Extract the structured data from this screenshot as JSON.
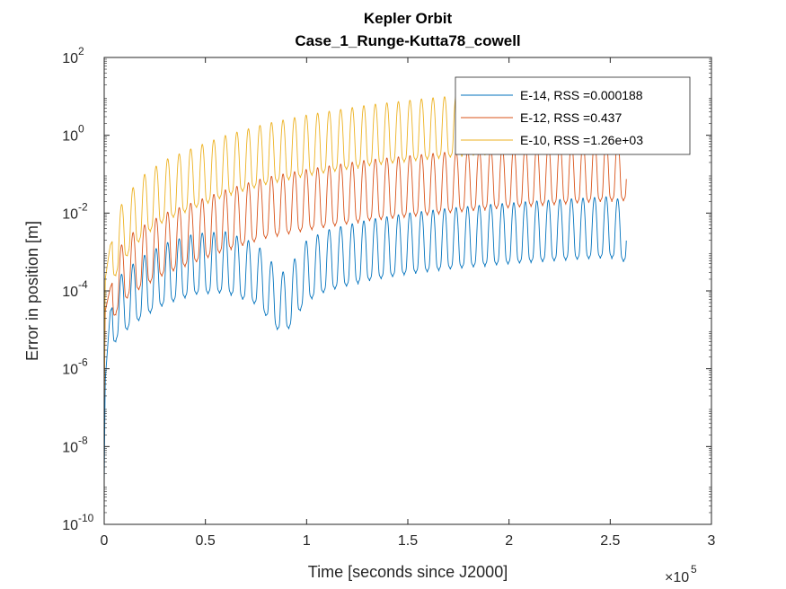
{
  "chart_data": {
    "type": "line",
    "title": "Kepler Orbit",
    "subtitle": "Case_1_Runge-Kutta78_cowell",
    "xlabel": "Time [seconds since J2000]",
    "ylabel": "Error in position [m]",
    "x_scale_note": "×10",
    "x_scale_exponent": "5",
    "xlim": [
      0,
      300000
    ],
    "ylim": [
      1e-10,
      100
    ],
    "y_scale": "log",
    "x_ticks": [
      {
        "value": 0,
        "label": "0"
      },
      {
        "value": 50000,
        "label": "0.5"
      },
      {
        "value": 100000,
        "label": "1"
      },
      {
        "value": 150000,
        "label": "1.5"
      },
      {
        "value": 200000,
        "label": "2"
      },
      {
        "value": 250000,
        "label": "2.5"
      },
      {
        "value": 300000,
        "label": "3"
      }
    ],
    "y_ticks": [
      {
        "exp": -10,
        "base": "10",
        "sup": "-10"
      },
      {
        "exp": -8,
        "base": "10",
        "sup": "-8"
      },
      {
        "exp": -6,
        "base": "10",
        "sup": "-6"
      },
      {
        "exp": -4,
        "base": "10",
        "sup": "-4"
      },
      {
        "exp": -2,
        "base": "10",
        "sup": "-2"
      },
      {
        "exp": 0,
        "base": "10",
        "sup": "0"
      },
      {
        "exp": 2,
        "base": "10",
        "sup": "2"
      }
    ],
    "grid": false,
    "legend_position": "top-right",
    "periodic_model": {
      "x_end": 258000,
      "period": 5700,
      "description_x_units": "seconds"
    },
    "series": [
      {
        "name": "E-14, RSS =0.000188",
        "color": "#0072BD",
        "x": [
          0,
          500,
          3000,
          6000,
          12000,
          20000,
          30000,
          45000,
          60000,
          75000,
          80000,
          85000,
          88000,
          92000,
          96000,
          100000,
          110000,
          130000,
          150000,
          170000,
          190000,
          210000,
          230000,
          250000,
          258000
        ],
        "y": [
          1e-09,
          5e-07,
          3e-05,
          6e-05,
          0.00012,
          0.00025,
          0.0005,
          0.0009,
          0.001,
          0.0005,
          0.00025,
          0.00012,
          9e-05,
          0.00013,
          0.0003,
          0.0006,
          0.0011,
          0.002,
          0.003,
          0.004,
          0.005,
          0.006,
          0.007,
          0.008,
          0.006
        ]
      },
      {
        "name": "E-12, RSS =0.437",
        "color": "#D95319",
        "x": [
          0,
          500,
          3000,
          6000,
          12000,
          20000,
          30000,
          45000,
          60000,
          80000,
          100000,
          130000,
          160000,
          190000,
          220000,
          250000,
          258000
        ],
        "y": [
          1e-07,
          3e-05,
          0.00012,
          0.0003,
          0.0008,
          0.0015,
          0.003,
          0.006,
          0.012,
          0.025,
          0.04,
          0.07,
          0.1,
          0.14,
          0.18,
          0.23,
          0.23
        ]
      },
      {
        "name": "E-10, RSS =1.26e+03",
        "color": "#EDB120",
        "x": [
          0,
          500,
          3000,
          6000,
          12000,
          20000,
          30000,
          45000,
          60000,
          80000,
          100000,
          130000,
          160000,
          190000,
          220000,
          250000,
          258000
        ],
        "y": [
          1e-07,
          0.0002,
          0.0015,
          0.003,
          0.01,
          0.03,
          0.07,
          0.15,
          0.3,
          0.6,
          1,
          1.8,
          2.7,
          3.7,
          4.8,
          6,
          6
        ]
      }
    ]
  }
}
